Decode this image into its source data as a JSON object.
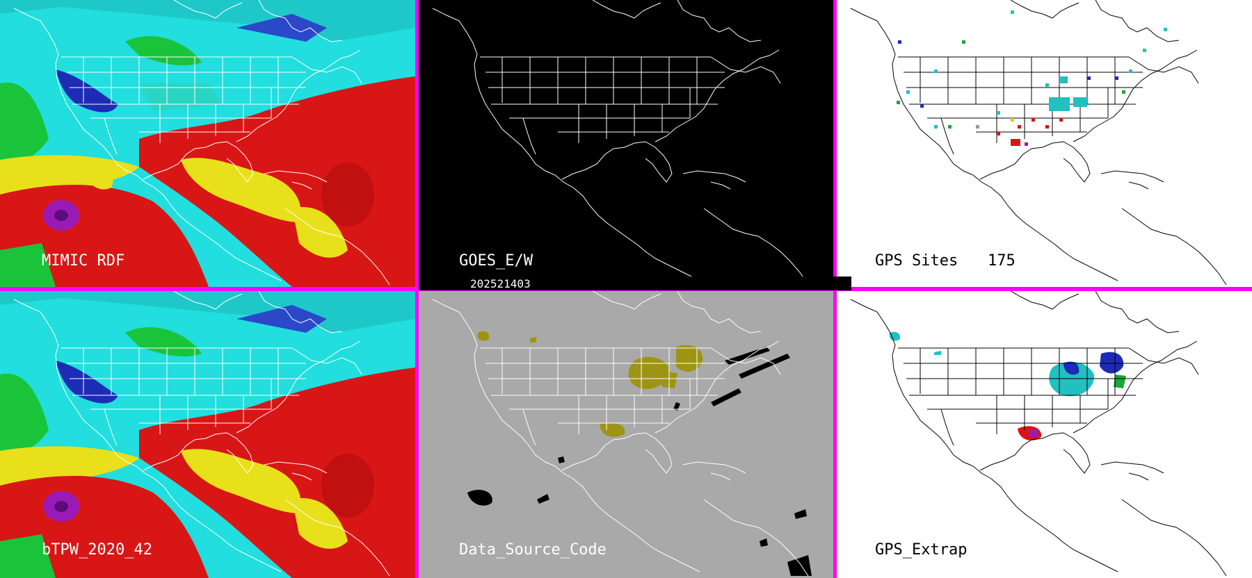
{
  "timestamp": "202521403",
  "colors": {
    "divider": "#ff00ff",
    "tpw_cyan": "#22dede",
    "tpw_blue": "#1c2cb4",
    "tpw_green": "#19c43a",
    "tpw_yellow": "#e8e01a",
    "tpw_red": "#d81616",
    "tpw_purple": "#9a1ab8",
    "goes_bg": "#000000",
    "dsc_bg": "#a9a9a9",
    "dsc_olive": "#9e9414",
    "gps_bg": "#ffffff"
  },
  "panels": [
    {
      "id": "mimic-rdf",
      "label": "MIMIC RDF",
      "background": "tpw"
    },
    {
      "id": "goes-ew",
      "label": "GOES_E/W",
      "background": "black"
    },
    {
      "id": "gps-sites",
      "label": "GPS Sites",
      "count": "175",
      "background": "white"
    },
    {
      "id": "btpw",
      "label": "bTPW_2020_42",
      "background": "tpw"
    },
    {
      "id": "data-source-code",
      "label": "Data_Source_Code",
      "background": "gray"
    },
    {
      "id": "gps-extrap",
      "label": "GPS_Extrap",
      "background": "white"
    }
  ]
}
